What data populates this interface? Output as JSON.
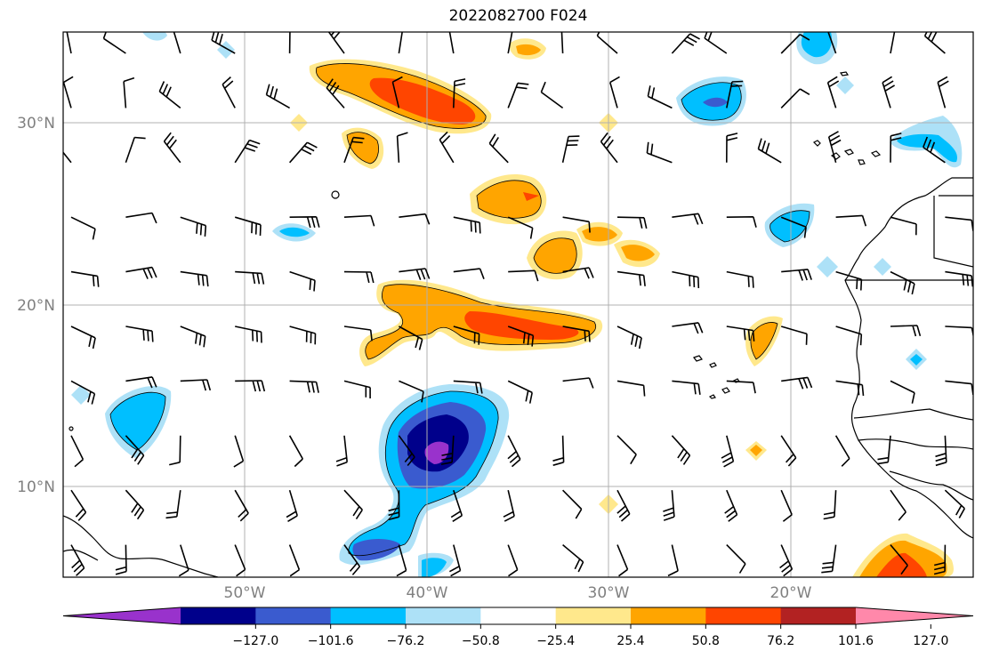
{
  "title": "2022082700 F024",
  "axes": {
    "lat_labels": [
      "30°N",
      "20°N",
      "10°N"
    ],
    "lon_labels": [
      "50°W",
      "40°W",
      "30°W",
      "20°W"
    ]
  },
  "colorbar": {
    "extend": "both",
    "ticks": [
      "−127.0",
      "−101.6",
      "−76.2",
      "−50.8",
      "−25.4",
      "25.4",
      "50.8",
      "76.2",
      "101.6",
      "127.0"
    ],
    "colors": [
      "#9932CC",
      "#00008B",
      "#3A5BCF",
      "#00BFFF",
      "#ADE1F7",
      "#FFFFFF",
      "#FFE88C",
      "#FFA500",
      "#FF4500",
      "#B22222",
      "#FF88AA"
    ]
  },
  "map": {
    "lon_range": [
      -60,
      -10
    ],
    "lat_range": [
      5,
      35
    ],
    "gridlines": true,
    "coastlines": true,
    "wind_barbs": true
  }
}
